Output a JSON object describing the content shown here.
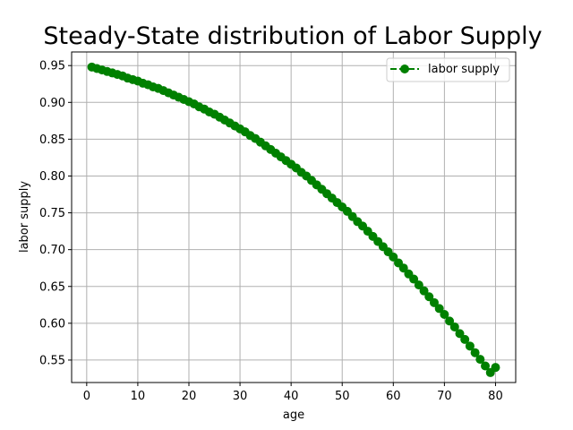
{
  "chart_data": {
    "type": "line",
    "title": "Steady-State distribution of Labor Supply",
    "xlabel": "age",
    "ylabel": "labor supply",
    "xlim": [
      -2.95,
      83.95
    ],
    "ylim": [
      0.5195,
      0.9685
    ],
    "xticks": [
      "0",
      "10",
      "20",
      "30",
      "40",
      "50",
      "60",
      "70",
      "80"
    ],
    "yticks": [
      "0.55",
      "0.60",
      "0.65",
      "0.70",
      "0.75",
      "0.80",
      "0.85",
      "0.90",
      "0.95"
    ],
    "grid": true,
    "legend_position": "top-right",
    "series": [
      {
        "name": "labor supply",
        "color": "#008000",
        "line_style": "dashed",
        "marker": "circle",
        "x": [
          1,
          2,
          3,
          4,
          5,
          6,
          7,
          8,
          9,
          10,
          11,
          12,
          13,
          14,
          15,
          16,
          17,
          18,
          19,
          20,
          21,
          22,
          23,
          24,
          25,
          26,
          27,
          28,
          29,
          30,
          31,
          32,
          33,
          34,
          35,
          36,
          37,
          38,
          39,
          40,
          41,
          42,
          43,
          44,
          45,
          46,
          47,
          48,
          49,
          50,
          51,
          52,
          53,
          54,
          55,
          56,
          57,
          58,
          59,
          60,
          61,
          62,
          63,
          64,
          65,
          66,
          67,
          68,
          69,
          70,
          71,
          72,
          73,
          74,
          75,
          76,
          77,
          78,
          79,
          80
        ],
        "y": [
          0.948,
          0.946,
          0.944,
          0.942,
          0.94,
          0.938,
          0.936,
          0.933,
          0.931,
          0.929,
          0.926,
          0.924,
          0.921,
          0.919,
          0.916,
          0.913,
          0.91,
          0.907,
          0.904,
          0.901,
          0.898,
          0.894,
          0.891,
          0.887,
          0.884,
          0.88,
          0.876,
          0.872,
          0.868,
          0.864,
          0.86,
          0.855,
          0.851,
          0.846,
          0.841,
          0.836,
          0.831,
          0.826,
          0.821,
          0.816,
          0.811,
          0.805,
          0.8,
          0.794,
          0.788,
          0.782,
          0.776,
          0.77,
          0.764,
          0.758,
          0.752,
          0.745,
          0.738,
          0.732,
          0.725,
          0.718,
          0.711,
          0.704,
          0.697,
          0.69,
          0.682,
          0.675,
          0.667,
          0.66,
          0.652,
          0.644,
          0.636,
          0.628,
          0.62,
          0.612,
          0.603,
          0.595,
          0.586,
          0.578,
          0.569,
          0.56,
          0.551,
          0.542,
          0.533,
          0.54
        ]
      }
    ]
  }
}
